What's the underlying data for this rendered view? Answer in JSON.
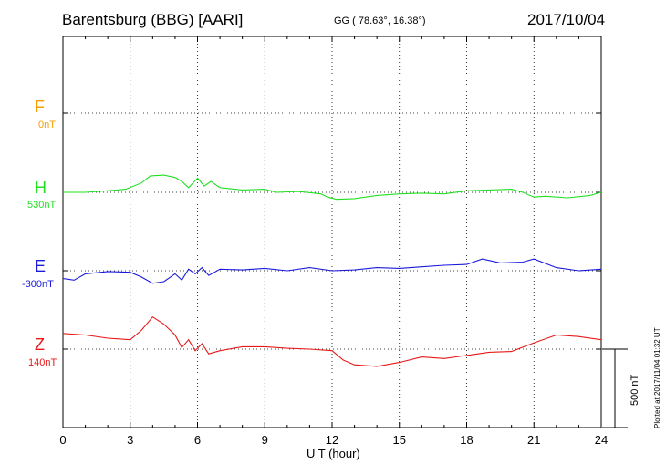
{
  "header": {
    "station": "Barentsburg (BBG)  [AARI]",
    "coords": "GG ( 78.63°,  16.38°)",
    "date": "2017/10/04"
  },
  "footnote": "Plotted at 2017/11/04 01:32 UT",
  "chart_data": {
    "type": "line",
    "xlabel": "U T (hour)",
    "xlim": [
      0,
      24
    ],
    "x_ticks": [
      0,
      3,
      6,
      9,
      12,
      15,
      18,
      21,
      24
    ],
    "grid": true,
    "scale_bar": "500 nT",
    "series": [
      {
        "name": "F",
        "baseline": "0nT",
        "color": "#f5a000",
        "x": [],
        "y": []
      },
      {
        "name": "H",
        "baseline": "530nT",
        "color": "#22e022",
        "x": [
          0,
          1,
          2,
          2.8,
          3.5,
          3.9,
          4.5,
          5.0,
          5.3,
          5.6,
          5.8,
          6.0,
          6.3,
          6.6,
          7.0,
          8.0,
          9.0,
          9.5,
          10.5,
          11.5,
          11.8,
          12.2,
          13.0,
          14.0,
          15.0,
          16.0,
          17.0,
          18.0,
          19.0,
          20.0,
          20.5,
          21.0,
          21.5,
          22.5,
          23.5,
          24.0
        ],
        "y": [
          530,
          530,
          540,
          550,
          590,
          635,
          640,
          625,
          600,
          560,
          590,
          620,
          570,
          600,
          560,
          545,
          550,
          530,
          535,
          520,
          500,
          485,
          490,
          510,
          520,
          525,
          520,
          540,
          545,
          550,
          530,
          500,
          505,
          495,
          510,
          530
        ]
      },
      {
        "name": "E",
        "baseline": "-300nT",
        "color": "#1a1adc",
        "x": [
          0,
          0.5,
          1,
          2,
          3,
          3.5,
          4.0,
          4.5,
          5.0,
          5.3,
          5.6,
          5.9,
          6.2,
          6.5,
          7,
          8,
          9,
          10,
          11,
          12,
          13,
          14,
          15,
          16,
          17,
          18,
          18.7,
          19.5,
          20.5,
          21.0,
          22,
          23,
          24
        ],
        "y": [
          -350,
          -360,
          -320,
          -305,
          -310,
          -340,
          -380,
          -370,
          -320,
          -360,
          -290,
          -320,
          -280,
          -330,
          -290,
          -295,
          -285,
          -300,
          -280,
          -300,
          -295,
          -280,
          -285,
          -275,
          -265,
          -260,
          -225,
          -250,
          -245,
          -225,
          -280,
          -300,
          -290
        ]
      },
      {
        "name": "Z",
        "baseline": "140nT",
        "color": "#e81818",
        "x": [
          0,
          1,
          2,
          3,
          3.5,
          4.0,
          4.5,
          5.0,
          5.3,
          5.6,
          5.9,
          6.2,
          6.5,
          7,
          8,
          9,
          10,
          11,
          12,
          12.5,
          13,
          14,
          15,
          16,
          17,
          18,
          19,
          20,
          21,
          22,
          23,
          24
        ],
        "y": [
          240,
          230,
          210,
          200,
          260,
          345,
          300,
          230,
          150,
          200,
          130,
          175,
          110,
          130,
          155,
          155,
          145,
          140,
          130,
          70,
          40,
          30,
          55,
          90,
          80,
          100,
          120,
          125,
          180,
          230,
          220,
          200
        ]
      }
    ]
  }
}
